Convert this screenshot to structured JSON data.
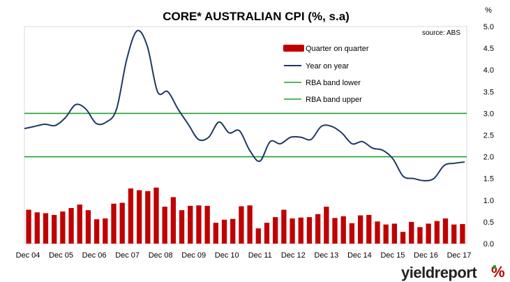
{
  "chart_data": {
    "type": "bar",
    "title": "CORE* AUSTRALIAN CPI (%, s.a)",
    "y_unit": "%",
    "source": "source: ABS",
    "ylim": [
      0,
      5
    ],
    "y_ticks": [
      "5.0",
      "4.5",
      "4.0",
      "3.5",
      "3.0",
      "2.5",
      "2.0",
      "1.5",
      "1.0",
      "0.5",
      "0.0"
    ],
    "x_ticks": [
      "Dec 04",
      "Dec 05",
      "Dec 06",
      "Dec 07",
      "Dec 08",
      "Dec 09",
      "Dec 10",
      "Dec 11",
      "Dec 12",
      "Dec 13",
      "Dec 14",
      "Dec 15",
      "Dec 16",
      "Dec 17"
    ],
    "grid": false,
    "legend_position": "top-right",
    "series": [
      {
        "name": "Quarter on quarter",
        "type": "bar",
        "color": "#c00000",
        "values": [
          0.78,
          0.72,
          0.7,
          0.66,
          0.74,
          0.82,
          0.9,
          0.77,
          0.56,
          0.58,
          0.92,
          0.94,
          1.27,
          1.23,
          1.21,
          1.29,
          0.85,
          1.07,
          0.77,
          0.87,
          0.88,
          0.87,
          0.48,
          0.55,
          0.57,
          0.86,
          0.88,
          0.35,
          0.48,
          0.61,
          0.78,
          0.58,
          0.6,
          0.61,
          0.68,
          0.85,
          0.59,
          0.63,
          0.47,
          0.65,
          0.66,
          0.51,
          0.44,
          0.46,
          0.27,
          0.5,
          0.38,
          0.46,
          0.52,
          0.58,
          0.44,
          0.45
        ]
      },
      {
        "name": "Year on year",
        "type": "line",
        "color": "#1f3864",
        "values": [
          2.65,
          2.7,
          2.75,
          2.72,
          2.9,
          3.2,
          3.1,
          2.77,
          2.8,
          3.1,
          4.25,
          4.9,
          4.55,
          3.5,
          3.5,
          3.1,
          2.75,
          2.4,
          2.45,
          2.8,
          2.55,
          2.6,
          2.15,
          1.9,
          2.35,
          2.3,
          2.45,
          2.45,
          2.4,
          2.7,
          2.7,
          2.55,
          2.3,
          2.35,
          2.2,
          2.15,
          1.95,
          1.55,
          1.5,
          1.45,
          1.5,
          1.8,
          1.85,
          1.88
        ]
      },
      {
        "name": "RBA band lower",
        "type": "line",
        "color": "#1fa02f",
        "values": [
          2.0
        ]
      },
      {
        "name": "RBA band upper",
        "type": "line",
        "color": "#1fa02f",
        "values": [
          3.0
        ]
      }
    ]
  },
  "branding": {
    "name": "yieldreport",
    "suffix": "%"
  }
}
